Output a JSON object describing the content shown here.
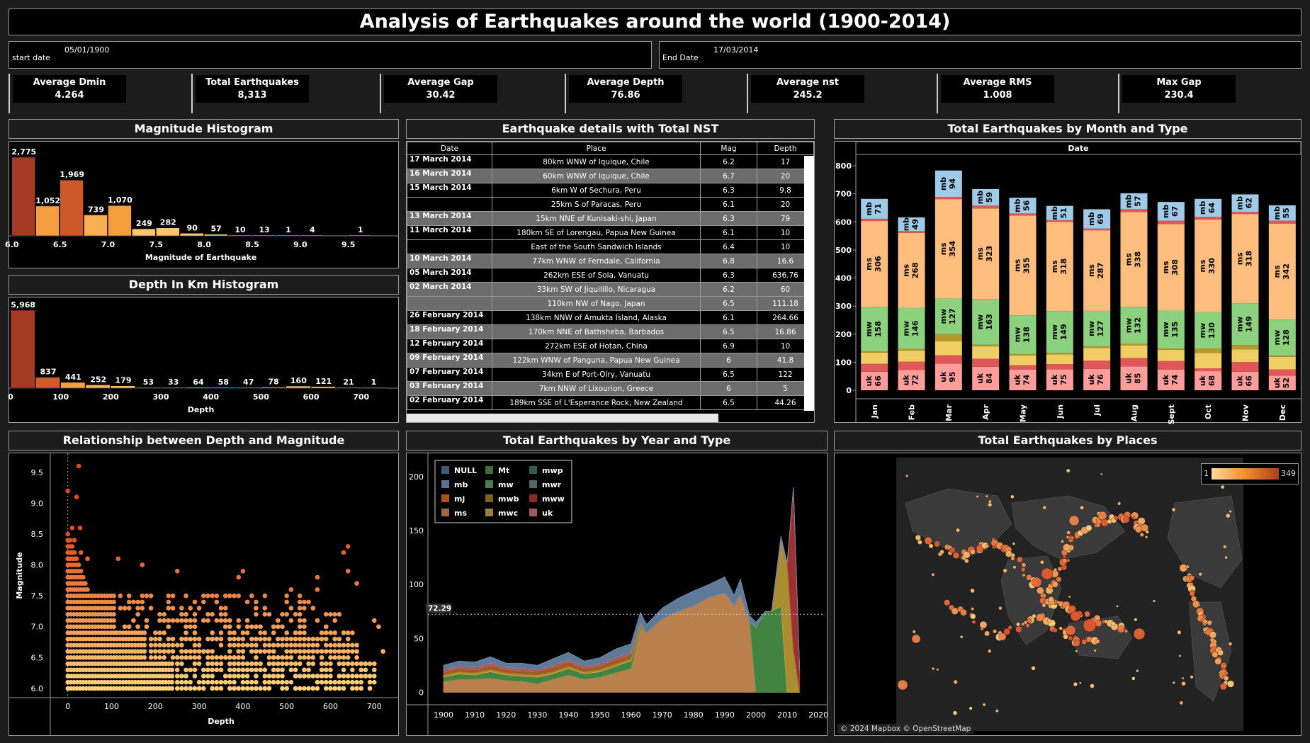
{
  "dashboard": {
    "title": "Analysis of Earthquakes around the world (1900-2014)",
    "start_label": "start date",
    "start_value": "05/01/1900",
    "end_label": "End Date",
    "end_value": "17/03/2014"
  },
  "kpis": [
    {
      "label": "Average Dmin",
      "value": "4.264"
    },
    {
      "label": "Total Earthquakes",
      "value": "8,313"
    },
    {
      "label": "Average Gap",
      "value": "30.42"
    },
    {
      "label": "Average Depth",
      "value": "76.86"
    },
    {
      "label": "Average nst",
      "value": "245.2"
    },
    {
      "label": "Average RMS",
      "value": "1.008"
    },
    {
      "label": "Max Gap",
      "value": "230.4"
    }
  ],
  "titles": {
    "mag_hist": "Magnitude Histogram",
    "depth_hist": "Depth In Km Histogram",
    "table": "Earthquake details with Total NST",
    "monthly": "Total Earthquakes by Month  and Type",
    "scatter": "Relationship between Depth and Magnitude",
    "yearly": "Total Earthquakes by Year and Type",
    "map": "Total Earthquakes by Places"
  },
  "table": {
    "headers": [
      "Date",
      "Place",
      "Mag",
      "Depth"
    ],
    "rows": [
      {
        "date": "17 March 2014",
        "place": "80km WNW of Iquique, Chile",
        "mag": "6.2",
        "depth": "17"
      },
      {
        "date": "16 March 2014",
        "place": "60km WNW of Iquique, Chile",
        "mag": "6.7",
        "depth": "20"
      },
      {
        "date": "15 March 2014",
        "place": "6km W of Sechura, Peru",
        "mag": "6.3",
        "depth": "9.8"
      },
      {
        "date": "",
        "place": "25km S of Paracas, Peru",
        "mag": "6.1",
        "depth": "20"
      },
      {
        "date": "13 March 2014",
        "place": "15km NNE of Kunisaki-shi, Japan",
        "mag": "6.3",
        "depth": "79"
      },
      {
        "date": "11 March 2014",
        "place": "180km SE of Lorengau, Papua New Guinea",
        "mag": "6.1",
        "depth": "10"
      },
      {
        "date": "",
        "place": "East of the South Sandwich Islands",
        "mag": "6.4",
        "depth": "10"
      },
      {
        "date": "10 March 2014",
        "place": "77km WNW of Ferndale, California",
        "mag": "6.8",
        "depth": "16.6"
      },
      {
        "date": "05 March 2014",
        "place": "262km ESE of Sola, Vanuatu",
        "mag": "6.3",
        "depth": "636.76"
      },
      {
        "date": "02 March 2014",
        "place": "33km SW of Jiquilillo, Nicaragua",
        "mag": "6.2",
        "depth": "60"
      },
      {
        "date": "",
        "place": "110km NW of Nago, Japan",
        "mag": "6.5",
        "depth": "111.18"
      },
      {
        "date": "26 February 2014",
        "place": "138km NNW of Amukta Island, Alaska",
        "mag": "6.1",
        "depth": "264.66"
      },
      {
        "date": "18 February 2014",
        "place": "170km NNE of Bathsheba, Barbados",
        "mag": "6.5",
        "depth": "16.86"
      },
      {
        "date": "12 February 2014",
        "place": "272km ESE of Hotan, China",
        "mag": "6.9",
        "depth": "10"
      },
      {
        "date": "09 February 2014",
        "place": "122km WNW of Panguna, Papua New Guinea",
        "mag": "6",
        "depth": "41.8"
      },
      {
        "date": "07 February 2014",
        "place": "34km E of Port-Olry, Vanuatu",
        "mag": "6.5",
        "depth": "122"
      },
      {
        "date": "03 February 2014",
        "place": "7km NNW of Lixourion, Greece",
        "mag": "6",
        "depth": "5"
      },
      {
        "date": "02 February 2014",
        "place": "189km SSE of L'Esperance Rock, New Zealand",
        "mag": "6.5",
        "depth": "44.26"
      }
    ]
  },
  "map": {
    "legend_min": "1",
    "legend_max": "349",
    "attribution": "© 2024 Mapbox © OpenStreetMap"
  },
  "colors": {
    "mb": "#9fcbe8",
    "ms": "#ffbe7d",
    "mw": "#8cd17d",
    "mwc": "#f1ce63",
    "mwb": "#b6992d",
    "uk": "#ff9d9a",
    "mwr": "#e15759",
    "mww": "#e15759",
    "hist_dark": "#a63a24",
    "hist_mid": "#f28e2b",
    "scatter": "#f5a04a"
  },
  "chart_data": [
    {
      "type": "bar",
      "title": "Magnitude Histogram",
      "xlabel": "Magnitude of Earthquake",
      "bin_starts": [
        6.0,
        6.25,
        6.5,
        6.75,
        7.0,
        7.25,
        7.5,
        7.75,
        8.0,
        8.25,
        8.5,
        8.75,
        9.0,
        9.25,
        9.5
      ],
      "values": [
        2775,
        1052,
        1969,
        739,
        1070,
        249,
        282,
        90,
        57,
        10,
        13,
        1,
        4,
        null,
        1
      ],
      "value_labels": [
        "2,775",
        "1,052",
        "1,969",
        "739",
        "1,070",
        "249",
        "282",
        "90",
        "57",
        "10",
        "13",
        "1",
        "4",
        "",
        "1"
      ],
      "xticks": [
        "6.0",
        "6.5",
        "7.0",
        "7.5",
        "8.0",
        "8.5",
        "9.0",
        "9.5"
      ],
      "xlim": [
        5.95,
        9.9
      ]
    },
    {
      "type": "bar",
      "title": "Depth In Km Histogram",
      "xlabel": "Depth",
      "bin_starts": [
        0,
        50,
        100,
        150,
        200,
        250,
        300,
        350,
        400,
        450,
        500,
        550,
        600,
        650,
        700
      ],
      "values": [
        5968,
        837,
        441,
        252,
        179,
        53,
        33,
        64,
        58,
        47,
        78,
        160,
        121,
        21,
        1
      ],
      "value_labels": [
        "5,968",
        "837",
        "441",
        "252",
        "179",
        "53",
        "33",
        "64",
        "58",
        "47",
        "78",
        "160",
        "121",
        "21",
        "1"
      ],
      "xticks": [
        "0",
        "100",
        "200",
        "300",
        "400",
        "500",
        "600",
        "700"
      ],
      "xlim": [
        0,
        740
      ]
    },
    {
      "type": "bar",
      "stacked": true,
      "title": "Total Earthquakes by Month  and Type",
      "header": "Date",
      "categories": [
        "Jan",
        "Feb",
        "Mar",
        "Apr",
        "May",
        "Jun",
        "Jul",
        "Aug",
        "Sept",
        "Oct",
        "Nov",
        "Dec"
      ],
      "ylim": [
        0,
        820
      ],
      "yticks": [
        0,
        100,
        200,
        300,
        400,
        500,
        600,
        700,
        800
      ],
      "series": [
        {
          "name": "uk",
          "values": [
            66,
            72,
            95,
            84,
            74,
            75,
            76,
            85,
            74,
            68,
            66,
            52
          ]
        },
        {
          "name": "mwr",
          "values": [
            28,
            30,
            30,
            28,
            15,
            18,
            30,
            30,
            30,
            10,
            35,
            22
          ]
        },
        {
          "name": "mwc",
          "values": [
            40,
            40,
            50,
            45,
            35,
            35,
            45,
            45,
            40,
            55,
            45,
            45
          ]
        },
        {
          "name": "mwb",
          "values": [
            5,
            5,
            25,
            5,
            5,
            5,
            5,
            5,
            5,
            15,
            15,
            5
          ]
        },
        {
          "name": "mw",
          "values": [
            158,
            146,
            127,
            163,
            138,
            149,
            127,
            132,
            135,
            130,
            149,
            128
          ]
        },
        {
          "name": "ms",
          "values": [
            306,
            268,
            354,
            323,
            355,
            318,
            287,
            338,
            308,
            330,
            318,
            342
          ]
        },
        {
          "name": "mww",
          "values": [
            8,
            6,
            8,
            10,
            8,
            6,
            6,
            10,
            12,
            10,
            8,
            10
          ]
        },
        {
          "name": "mb",
          "values": [
            71,
            49,
            94,
            59,
            56,
            51,
            69,
            57,
            67,
            64,
            62,
            55
          ]
        }
      ],
      "labeled_series": [
        "uk",
        "mw",
        "ms",
        "mb"
      ]
    },
    {
      "type": "scatter",
      "title": "Relationship between Depth and Magnitude",
      "xlabel": "Depth",
      "ylabel": "Magnitude",
      "xlim": [
        -40,
        740
      ],
      "ylim": [
        5.85,
        9.75
      ],
      "xticks": [
        0,
        100,
        200,
        300,
        400,
        500,
        600,
        700
      ],
      "yticks": [
        "6.0",
        "6.5",
        "7.0",
        "7.5",
        "8.0",
        "8.5",
        "9.0",
        "9.5"
      ],
      "points": [
        [
          0,
          9.2
        ],
        [
          20,
          9.1
        ],
        [
          25,
          9.6
        ],
        [
          28,
          8.6
        ],
        [
          10,
          8.6
        ],
        [
          15,
          8.4
        ],
        [
          640,
          8.3
        ],
        [
          30,
          8.2
        ],
        [
          45,
          8.1
        ],
        [
          115,
          8.1
        ],
        [
          630,
          8.2
        ],
        [
          170,
          8.0
        ],
        [
          250,
          7.9
        ],
        [
          400,
          7.9
        ],
        [
          570,
          7.8
        ],
        [
          390,
          7.8
        ],
        [
          640,
          7.9
        ],
        [
          570,
          7.6
        ],
        [
          510,
          7.6
        ],
        [
          660,
          7.7
        ],
        [
          700,
          7.1
        ],
        [
          710,
          7.0
        ],
        [
          720,
          6.6
        ]
      ],
      "dense_region": {
        "x": [
          0,
          700
        ],
        "y": [
          6.0,
          7.5
        ]
      }
    },
    {
      "type": "area",
      "stacked": true,
      "title": "Total Earthquakes by Year and Type",
      "xlim": [
        1895,
        2022
      ],
      "ylim": [
        -5,
        215
      ],
      "xticks": [
        1900,
        1910,
        1920,
        1930,
        1940,
        1950,
        1960,
        1970,
        1980,
        1990,
        2000,
        2010,
        2020
      ],
      "yticks": [
        0,
        50,
        100,
        150,
        200
      ],
      "reference_line": 72.29,
      "reference_label": "72.29",
      "legend": [
        "NULL",
        "mb",
        "mj",
        "ms",
        "Mt",
        "mw",
        "mwb",
        "mwc",
        "mwp",
        "mwr",
        "mww",
        "uk"
      ],
      "x": [
        1900,
        1905,
        1910,
        1915,
        1920,
        1925,
        1930,
        1935,
        1940,
        1945,
        1950,
        1955,
        1960,
        1963,
        1965,
        1970,
        1975,
        1980,
        1985,
        1990,
        1993,
        1995,
        1998,
        2000,
        2003,
        2005,
        2008,
        2010,
        2012,
        2014
      ],
      "series": [
        {
          "name": "ms",
          "values": [
            10,
            12,
            12,
            13,
            11,
            10,
            8,
            12,
            16,
            12,
            14,
            18,
            22,
            60,
            55,
            68,
            75,
            80,
            88,
            92,
            80,
            90,
            65,
            0,
            0,
            0,
            0,
            0,
            0,
            0
          ]
        },
        {
          "name": "mw",
          "values": [
            4,
            5,
            4,
            6,
            5,
            5,
            6,
            5,
            6,
            5,
            5,
            6,
            7,
            2,
            0,
            0,
            0,
            0,
            0,
            0,
            0,
            0,
            0,
            60,
            75,
            75,
            80,
            0,
            0,
            0
          ]
        },
        {
          "name": "mwc",
          "values": [
            2,
            2,
            2,
            2,
            2,
            2,
            2,
            2,
            2,
            2,
            2,
            2,
            2,
            1,
            0,
            0,
            0,
            0,
            0,
            0,
            0,
            0,
            0,
            0,
            0,
            0,
            60,
            120,
            40,
            0
          ]
        },
        {
          "name": "mww",
          "values": [
            0,
            0,
            0,
            0,
            0,
            0,
            0,
            0,
            0,
            0,
            0,
            0,
            0,
            0,
            0,
            0,
            0,
            0,
            0,
            0,
            0,
            0,
            0,
            0,
            0,
            0,
            0,
            0,
            150,
            20
          ]
        },
        {
          "name": "mj",
          "values": [
            3,
            3,
            3,
            4,
            3,
            3,
            3,
            4,
            4,
            3,
            3,
            4,
            4,
            1,
            0,
            0,
            0,
            0,
            0,
            0,
            0,
            0,
            0,
            0,
            0,
            0,
            0,
            0,
            0,
            0
          ]
        },
        {
          "name": "uk",
          "values": [
            2,
            2,
            2,
            2,
            2,
            2,
            2,
            2,
            2,
            2,
            2,
            2,
            2,
            0,
            0,
            0,
            0,
            0,
            0,
            0,
            0,
            0,
            0,
            0,
            0,
            0,
            0,
            0,
            0,
            0
          ]
        },
        {
          "name": "mb",
          "values": [
            4,
            5,
            5,
            6,
            4,
            5,
            4,
            6,
            7,
            5,
            6,
            8,
            8,
            10,
            8,
            10,
            12,
            14,
            12,
            15,
            10,
            15,
            6,
            5,
            0,
            0,
            5,
            0,
            0,
            0
          ]
        }
      ]
    }
  ]
}
